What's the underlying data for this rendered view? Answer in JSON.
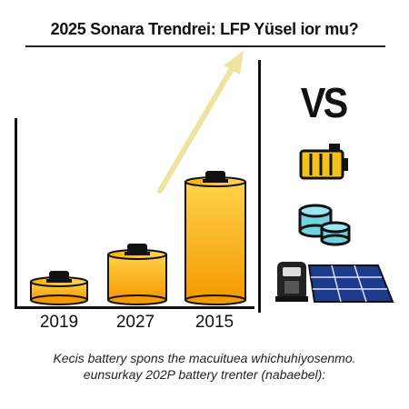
{
  "title": "2025 Sonara Trendrei: LFP Yüsel ior mu?",
  "vs_label": "VS",
  "caption": {
    "line1": "Kecis battery spons the macuituea whichuhiyosenmo.",
    "line2": "eunsurkay 202P battery trenter (nabaebel):"
  },
  "chart_data": {
    "type": "bar",
    "categories": [
      "2019",
      "2027",
      "2015"
    ],
    "series": [
      {
        "values": [
          1,
          2.5,
          6.5
        ]
      }
    ],
    "trend_arrow": true
  },
  "icons": [
    "battery-icon",
    "cylinder-cells-icon",
    "charger-icon",
    "solar-panel-icon"
  ],
  "colors": {
    "bar_top": "#ffd24a",
    "bar_bottom": "#f59a00",
    "arrow": "#efe3a0"
  }
}
